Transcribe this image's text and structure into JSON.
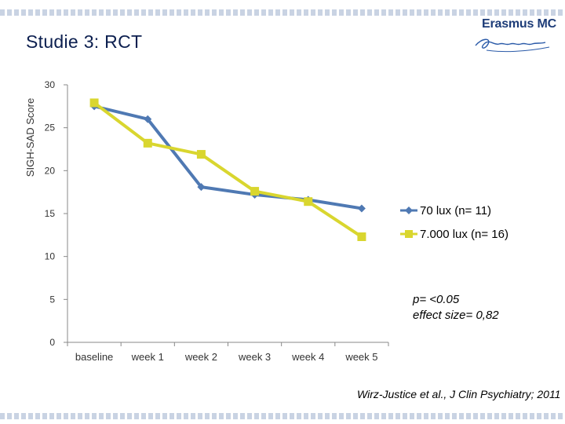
{
  "slide": {
    "title": "Studie 3: RCT",
    "logo_text": "Erasmus MC",
    "citation": "Wirz-Justice et al., J Clin Psychiatry; 2011",
    "annotation_line1": "p= <0.05",
    "annotation_line2": "effect size= 0,82"
  },
  "chart_data": {
    "type": "line",
    "title": "",
    "xlabel": "",
    "ylabel": "SIGH-SAD Score",
    "ylim": [
      0,
      30
    ],
    "yticks": [
      "0",
      "5",
      "10",
      "15",
      "20",
      "25",
      "30"
    ],
    "categories": [
      "baseline",
      "week 1",
      "week 2",
      "week 3",
      "week 4",
      "week 5"
    ],
    "grid": false,
    "legend_position": "right",
    "series": [
      {
        "name": "70 lux (n= 11)",
        "values": [
          27.5,
          26.0,
          18.1,
          17.2,
          16.6,
          15.6
        ],
        "color": "#4f79b3",
        "marker": "diamond"
      },
      {
        "name": "7.000 lux (n= 16)",
        "values": [
          27.9,
          23.2,
          21.9,
          17.6,
          16.4,
          12.3
        ],
        "color": "#d9d62f",
        "marker": "square"
      }
    ]
  }
}
